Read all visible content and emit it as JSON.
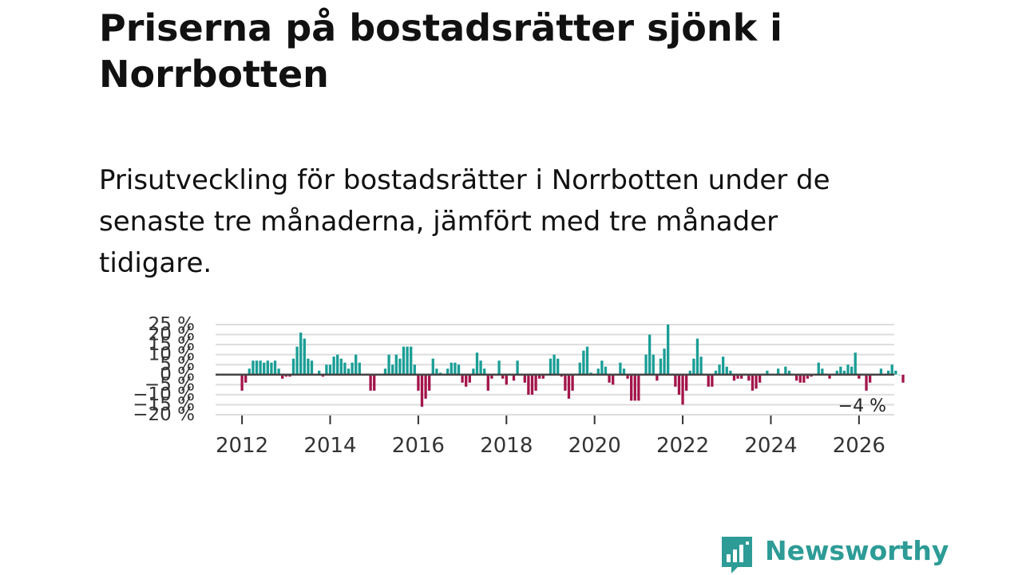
{
  "title": "Priserna på bostadsrätter sjönk i Norrbotten",
  "subtitle": "Prisutveckling för bostadsrätter i Norrbotten under de senaste tre månaderna, jämfört med tre månader tidigare.",
  "brand": {
    "name": "Newsworthy",
    "icon": "newsworthy-logo-icon",
    "color": "#2d9b96"
  },
  "chart_data": {
    "type": "bar",
    "title": "",
    "xlabel": "",
    "ylabel": "",
    "unit": "%",
    "xlim": [
      2011.4,
      2026.8
    ],
    "ylim": [
      -20,
      25
    ],
    "y_ticks": [
      -20,
      -15,
      -10,
      -5,
      0,
      5,
      10,
      15,
      20,
      25
    ],
    "y_tick_labels": [
      "−20 %",
      "−15 %",
      "−10 %",
      "−5 %",
      "0 %",
      "5 %",
      "10 %",
      "15 %",
      "20 %",
      "25 %"
    ],
    "x_ticks": [
      2012,
      2014,
      2016,
      2018,
      2020,
      2022,
      2024,
      2026
    ],
    "x_tick_labels": [
      "2012",
      "2014",
      "2016",
      "2018",
      "2020",
      "2022",
      "2024",
      "2026"
    ],
    "grid": true,
    "colors": {
      "positive": "#1a9e96",
      "negative": "#a3154a",
      "zero_line": "#444444",
      "grid": "#dddddd"
    },
    "start": {
      "year": 2012,
      "month": 1
    },
    "values": [
      -8,
      -4,
      3,
      7,
      7,
      7,
      6,
      7,
      6,
      7,
      3,
      -2,
      -1,
      -1,
      8,
      14,
      21,
      18,
      8,
      7,
      0,
      2,
      -1,
      5,
      5,
      9,
      10,
      8,
      6,
      3,
      6,
      10,
      6,
      0,
      0,
      -8,
      -8,
      0,
      0,
      3,
      10,
      5,
      10,
      8,
      14,
      14,
      14,
      5,
      -8,
      -16,
      -12,
      -8,
      8,
      3,
      1,
      0,
      3,
      6,
      6,
      5,
      -4,
      -6,
      -4,
      3,
      11,
      7,
      3,
      -8,
      -2,
      0,
      7,
      -2,
      -5,
      0,
      -3,
      7,
      0,
      -4,
      -10,
      -10,
      -8,
      -2,
      -2,
      0,
      8,
      10,
      8,
      -1,
      -8,
      -12,
      -8,
      0,
      6,
      12,
      14,
      1,
      0,
      3,
      7,
      4,
      -4,
      -5,
      0,
      6,
      3,
      -2,
      -13,
      -13,
      -13,
      0,
      10,
      20,
      10,
      -3,
      8,
      13,
      25,
      0,
      -6,
      -10,
      -15,
      -8,
      2,
      8,
      18,
      9,
      0,
      -6,
      -6,
      2,
      5,
      9,
      4,
      2,
      -3,
      -2,
      -2,
      0,
      -3,
      -8,
      -7,
      -4,
      0,
      2,
      0,
      0,
      3,
      0,
      4,
      2,
      0,
      -3,
      -4,
      -4,
      -2,
      -1,
      0,
      6,
      3,
      0,
      -2,
      0,
      2,
      4,
      2,
      5,
      4,
      11,
      -2,
      0,
      -8,
      -4,
      0,
      0,
      3,
      0,
      2,
      5,
      2,
      0,
      -4
    ],
    "annotations": [
      {
        "x": "last",
        "label": "−4 %",
        "value": -4
      }
    ]
  }
}
